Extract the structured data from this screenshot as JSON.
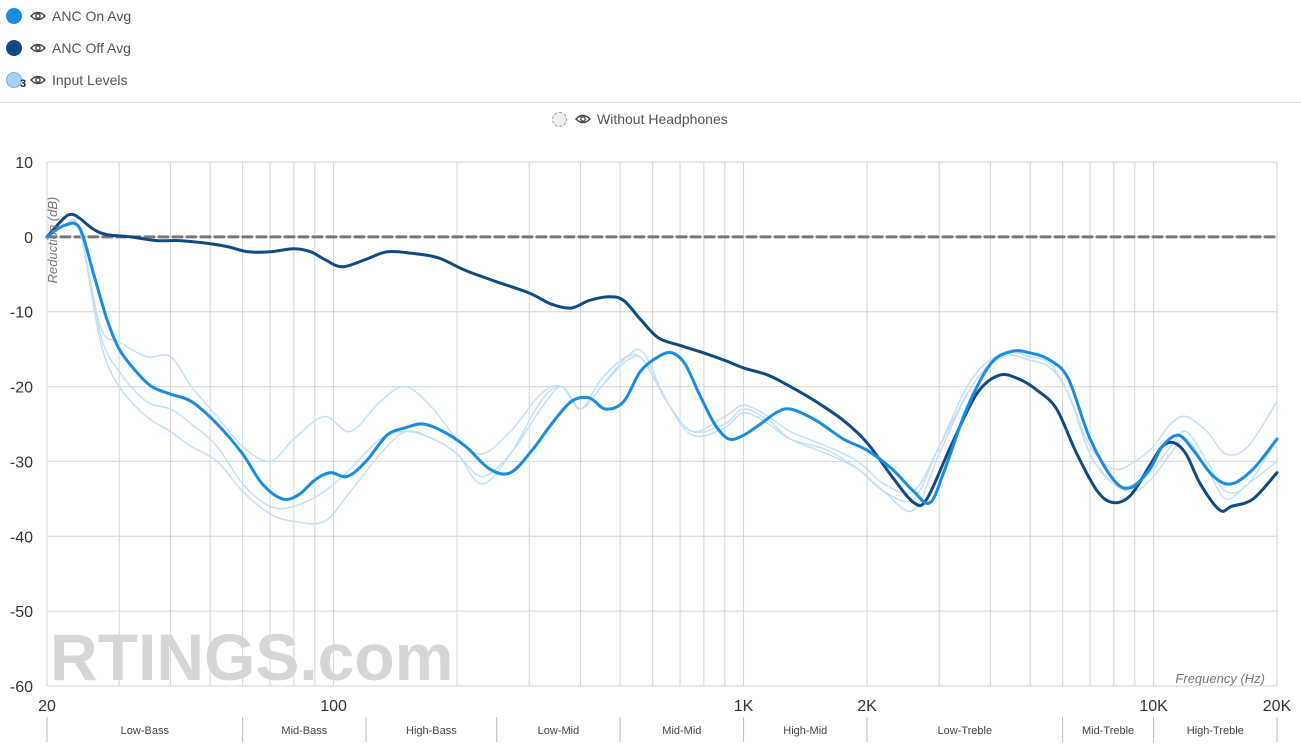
{
  "legend": {
    "items": [
      {
        "label": "ANC On Avg",
        "color": "#1a8ce0"
      },
      {
        "label": "ANC Off Avg",
        "color": "#0f4a80"
      },
      {
        "label": "Input Levels",
        "color": "#a9d1f3",
        "badge": "3"
      }
    ],
    "center_label": "Without Headphones"
  },
  "watermark": "RTINGS.com",
  "chart_data": {
    "type": "line",
    "xscale": "log",
    "xlim": [
      20,
      20000
    ],
    "ylim": [
      -60,
      10
    ],
    "ylabel": "Reduction (dB)",
    "xlabel": "Frequency (Hz)",
    "yticks": [
      10,
      0,
      -10,
      -20,
      -30,
      -40,
      -50,
      -60
    ],
    "xticks": [
      {
        "value": 20,
        "label": "20"
      },
      {
        "value": 100,
        "label": "100"
      },
      {
        "value": 1000,
        "label": "1K"
      },
      {
        "value": 2000,
        "label": "2K"
      },
      {
        "value": 10000,
        "label": "10K"
      },
      {
        "value": 20000,
        "label": "20K"
      }
    ],
    "bands": [
      {
        "label": "Low-Bass",
        "from": 20,
        "to": 60
      },
      {
        "label": "Mid-Bass",
        "from": 60,
        "to": 120
      },
      {
        "label": "High-Bass",
        "from": 120,
        "to": 250
      },
      {
        "label": "Low-Mid",
        "from": 250,
        "to": 500
      },
      {
        "label": "Mid-Mid",
        "from": 500,
        "to": 1000
      },
      {
        "label": "High-Mid",
        "from": 1000,
        "to": 2000
      },
      {
        "label": "Low-Treble",
        "from": 2000,
        "to": 6000
      },
      {
        "label": "Mid-Treble",
        "from": 6000,
        "to": 10000
      },
      {
        "label": "High-Treble",
        "from": 10000,
        "to": 20000
      }
    ],
    "series": [
      {
        "name": "Without Headphones",
        "color": "#777777",
        "dashed": true,
        "points": [
          [
            20,
            0
          ],
          [
            20000,
            0
          ]
        ]
      },
      {
        "name": "Input Level 1",
        "color": "#c4e0f8",
        "width": 1.5,
        "points": [
          [
            20,
            0
          ],
          [
            22,
            1.5
          ],
          [
            24,
            1.0
          ],
          [
            27,
            -12
          ],
          [
            30,
            -14
          ],
          [
            35,
            -16
          ],
          [
            40,
            -16
          ],
          [
            45,
            -20
          ],
          [
            52,
            -24
          ],
          [
            60,
            -28
          ],
          [
            70,
            -30
          ],
          [
            80,
            -27
          ],
          [
            95,
            -24
          ],
          [
            110,
            -26
          ],
          [
            130,
            -22
          ],
          [
            150,
            -20
          ],
          [
            175,
            -23
          ],
          [
            200,
            -27
          ],
          [
            230,
            -29
          ],
          [
            270,
            -26
          ],
          [
            320,
            -21
          ],
          [
            360,
            -20
          ],
          [
            400,
            -23
          ],
          [
            450,
            -19
          ],
          [
            520,
            -16
          ],
          [
            570,
            -16.5
          ],
          [
            650,
            -22
          ],
          [
            750,
            -26
          ],
          [
            900,
            -24
          ],
          [
            1000,
            -22.5
          ],
          [
            1150,
            -24
          ],
          [
            1300,
            -26
          ],
          [
            1600,
            -28
          ],
          [
            1900,
            -30
          ],
          [
            2200,
            -33
          ],
          [
            2600,
            -34
          ],
          [
            3000,
            -28
          ],
          [
            3600,
            -20
          ],
          [
            4300,
            -15.5
          ],
          [
            5000,
            -16
          ],
          [
            5600,
            -17
          ],
          [
            6200,
            -21
          ],
          [
            7000,
            -28
          ],
          [
            8000,
            -31
          ],
          [
            9000,
            -30
          ],
          [
            10000,
            -28
          ],
          [
            11000,
            -25
          ],
          [
            12000,
            -24
          ],
          [
            13500,
            -26
          ],
          [
            15000,
            -29
          ],
          [
            17000,
            -28
          ],
          [
            20000,
            -22
          ]
        ]
      },
      {
        "name": "Input Level 2",
        "color": "#c4e0f8",
        "width": 1.5,
        "points": [
          [
            20,
            0
          ],
          [
            22,
            1.5
          ],
          [
            24,
            1.0
          ],
          [
            27,
            -14
          ],
          [
            30,
            -20
          ],
          [
            35,
            -24
          ],
          [
            40,
            -26
          ],
          [
            45,
            -28
          ],
          [
            52,
            -30
          ],
          [
            60,
            -34
          ],
          [
            70,
            -37
          ],
          [
            80,
            -38
          ],
          [
            95,
            -38
          ],
          [
            110,
            -34
          ],
          [
            130,
            -29
          ],
          [
            150,
            -26
          ],
          [
            175,
            -27
          ],
          [
            200,
            -29
          ],
          [
            230,
            -32
          ],
          [
            270,
            -29
          ],
          [
            320,
            -23
          ],
          [
            360,
            -20
          ],
          [
            400,
            -23
          ],
          [
            450,
            -20
          ],
          [
            520,
            -16.5
          ],
          [
            570,
            -16.5
          ],
          [
            650,
            -22
          ],
          [
            750,
            -26
          ],
          [
            900,
            -25
          ],
          [
            1000,
            -23
          ],
          [
            1150,
            -24.5
          ],
          [
            1300,
            -27
          ],
          [
            1600,
            -29
          ],
          [
            1900,
            -31
          ],
          [
            2200,
            -34
          ],
          [
            2600,
            -36.5
          ],
          [
            3000,
            -29
          ],
          [
            3600,
            -20
          ],
          [
            4300,
            -16
          ],
          [
            5000,
            -16.5
          ],
          [
            5600,
            -17.5
          ],
          [
            6200,
            -21
          ],
          [
            7000,
            -29
          ],
          [
            8000,
            -33
          ],
          [
            9000,
            -34
          ],
          [
            10000,
            -32
          ],
          [
            11000,
            -29
          ],
          [
            12000,
            -27
          ],
          [
            13500,
            -31
          ],
          [
            15000,
            -35
          ],
          [
            17000,
            -33
          ],
          [
            20000,
            -30
          ]
        ]
      },
      {
        "name": "Input Level 3",
        "color": "#c4e0f8",
        "width": 1.5,
        "points": [
          [
            20,
            0
          ],
          [
            22,
            1.5
          ],
          [
            24,
            1.0
          ],
          [
            27,
            -13
          ],
          [
            30,
            -18
          ],
          [
            35,
            -22
          ],
          [
            40,
            -23
          ],
          [
            45,
            -25
          ],
          [
            52,
            -28
          ],
          [
            60,
            -33
          ],
          [
            70,
            -36
          ],
          [
            80,
            -36
          ],
          [
            95,
            -34
          ],
          [
            110,
            -31
          ],
          [
            130,
            -27
          ],
          [
            150,
            -26
          ],
          [
            175,
            -27
          ],
          [
            200,
            -29
          ],
          [
            230,
            -33
          ],
          [
            270,
            -29
          ],
          [
            320,
            -22
          ],
          [
            360,
            -20
          ],
          [
            400,
            -23
          ],
          [
            450,
            -20
          ],
          [
            520,
            -16
          ],
          [
            570,
            -15.5
          ],
          [
            650,
            -22
          ],
          [
            750,
            -26.5
          ],
          [
            900,
            -25.5
          ],
          [
            1000,
            -23.5
          ],
          [
            1150,
            -25
          ],
          [
            1300,
            -27
          ],
          [
            1600,
            -28.5
          ],
          [
            1900,
            -31
          ],
          [
            2200,
            -34
          ],
          [
            2600,
            -35
          ],
          [
            3000,
            -28
          ],
          [
            3600,
            -19
          ],
          [
            4300,
            -15.5
          ],
          [
            5000,
            -16
          ],
          [
            5600,
            -17
          ],
          [
            6200,
            -21
          ],
          [
            7000,
            -29
          ],
          [
            8000,
            -33
          ],
          [
            9000,
            -33
          ],
          [
            10000,
            -31
          ],
          [
            11000,
            -28
          ],
          [
            12000,
            -26
          ],
          [
            13500,
            -30
          ],
          [
            15000,
            -34
          ],
          [
            17000,
            -33
          ],
          [
            20000,
            -27
          ]
        ]
      },
      {
        "name": "ANC Off Avg",
        "color": "#0f4a80",
        "width": 3,
        "points": [
          [
            20,
            0
          ],
          [
            22,
            2.5
          ],
          [
            23,
            3
          ],
          [
            24,
            2.5
          ],
          [
            26,
            1
          ],
          [
            28,
            0.3
          ],
          [
            32,
            0
          ],
          [
            37,
            -0.5
          ],
          [
            42,
            -0.5
          ],
          [
            48,
            -0.8
          ],
          [
            55,
            -1.3
          ],
          [
            62,
            -2
          ],
          [
            70,
            -2
          ],
          [
            80,
            -1.6
          ],
          [
            88,
            -2
          ],
          [
            95,
            -3
          ],
          [
            105,
            -4
          ],
          [
            120,
            -3
          ],
          [
            135,
            -2
          ],
          [
            155,
            -2.2
          ],
          [
            180,
            -2.8
          ],
          [
            210,
            -4.5
          ],
          [
            250,
            -6
          ],
          [
            300,
            -7.5
          ],
          [
            340,
            -9
          ],
          [
            380,
            -9.5
          ],
          [
            420,
            -8.5
          ],
          [
            470,
            -8
          ],
          [
            510,
            -8.5
          ],
          [
            560,
            -11
          ],
          [
            620,
            -13.5
          ],
          [
            700,
            -14.5
          ],
          [
            800,
            -15.5
          ],
          [
            900,
            -16.5
          ],
          [
            1000,
            -17.5
          ],
          [
            1150,
            -18.5
          ],
          [
            1300,
            -20
          ],
          [
            1500,
            -22
          ],
          [
            1750,
            -24.5
          ],
          [
            2000,
            -27.5
          ],
          [
            2300,
            -32
          ],
          [
            2600,
            -35.5
          ],
          [
            2800,
            -35
          ],
          [
            3200,
            -28
          ],
          [
            3700,
            -21
          ],
          [
            4200,
            -18.5
          ],
          [
            4700,
            -19
          ],
          [
            5200,
            -20.5
          ],
          [
            5800,
            -23
          ],
          [
            6500,
            -29
          ],
          [
            7300,
            -34
          ],
          [
            8000,
            -35.5
          ],
          [
            8800,
            -34.5
          ],
          [
            9800,
            -30.5
          ],
          [
            10500,
            -28
          ],
          [
            11200,
            -27.5
          ],
          [
            12000,
            -29
          ],
          [
            13000,
            -33
          ],
          [
            14500,
            -36.5
          ],
          [
            15500,
            -36
          ],
          [
            17500,
            -35
          ],
          [
            20000,
            -31.5
          ]
        ]
      },
      {
        "name": "ANC On Avg",
        "color": "#1a8ce0",
        "width": 3,
        "points": [
          [
            20,
            0
          ],
          [
            22,
            1.5
          ],
          [
            24,
            1.2
          ],
          [
            26,
            -5
          ],
          [
            28,
            -11
          ],
          [
            30,
            -15
          ],
          [
            33,
            -18
          ],
          [
            36,
            -20
          ],
          [
            40,
            -21
          ],
          [
            45,
            -22
          ],
          [
            52,
            -25
          ],
          [
            60,
            -29
          ],
          [
            67,
            -33
          ],
          [
            75,
            -35
          ],
          [
            82,
            -34.5
          ],
          [
            90,
            -32.5
          ],
          [
            98,
            -31.5
          ],
          [
            108,
            -32
          ],
          [
            120,
            -30
          ],
          [
            135,
            -26.5
          ],
          [
            150,
            -25.5
          ],
          [
            165,
            -25
          ],
          [
            185,
            -26
          ],
          [
            210,
            -28
          ],
          [
            240,
            -31
          ],
          [
            270,
            -31.5
          ],
          [
            305,
            -28.5
          ],
          [
            340,
            -25
          ],
          [
            380,
            -22
          ],
          [
            420,
            -21.5
          ],
          [
            460,
            -23
          ],
          [
            510,
            -22
          ],
          [
            560,
            -18
          ],
          [
            620,
            -16
          ],
          [
            670,
            -15.5
          ],
          [
            720,
            -17
          ],
          [
            780,
            -21
          ],
          [
            850,
            -25
          ],
          [
            920,
            -27
          ],
          [
            1000,
            -26.5
          ],
          [
            1100,
            -25
          ],
          [
            1200,
            -23.5
          ],
          [
            1300,
            -23
          ],
          [
            1500,
            -24.5
          ],
          [
            1750,
            -27
          ],
          [
            2000,
            -28.5
          ],
          [
            2300,
            -31
          ],
          [
            2600,
            -34
          ],
          [
            2850,
            -35.5
          ],
          [
            3100,
            -31
          ],
          [
            3500,
            -23
          ],
          [
            4000,
            -17
          ],
          [
            4500,
            -15.3
          ],
          [
            5000,
            -15.5
          ],
          [
            5600,
            -16.5
          ],
          [
            6200,
            -19
          ],
          [
            7000,
            -27
          ],
          [
            8000,
            -32.5
          ],
          [
            8800,
            -33.5
          ],
          [
            9800,
            -31
          ],
          [
            10500,
            -28
          ],
          [
            11500,
            -26.5
          ],
          [
            12500,
            -28.5
          ],
          [
            14000,
            -32
          ],
          [
            15500,
            -33
          ],
          [
            17500,
            -31
          ],
          [
            20000,
            -27
          ]
        ]
      }
    ]
  }
}
